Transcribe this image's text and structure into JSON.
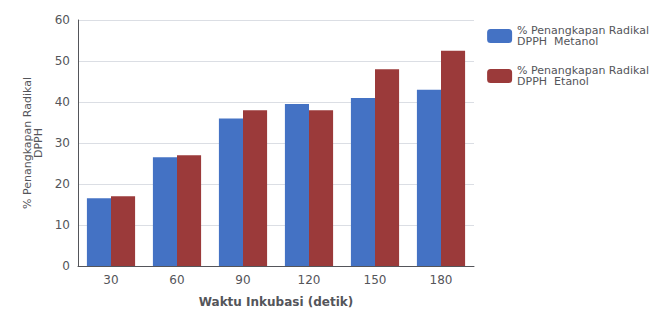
{
  "chart_data": {
    "type": "bar",
    "categories": [
      "30",
      "60",
      "90",
      "120",
      "150",
      "180"
    ],
    "series": [
      {
        "name": "% Penangkapan Radikal\nDPPH  Metanol",
        "color": "#4472C4",
        "values": [
          16.5,
          26.5,
          36.0,
          39.5,
          41.0,
          43.0
        ]
      },
      {
        "name": "% Penangkapan Radikal\nDPPH  Etanol",
        "color": "#9B3A3A",
        "values": [
          17.0,
          27.0,
          38.0,
          38.0,
          48.0,
          52.5
        ]
      }
    ],
    "xlabel": "Waktu Inkubasi (detik)",
    "ylabel": "% Penangkapan Radikal\nDPPH",
    "ylim": [
      0,
      60
    ],
    "yticks": [
      0,
      10,
      20,
      30,
      40,
      50,
      60
    ],
    "grid": true,
    "legend": "right"
  }
}
